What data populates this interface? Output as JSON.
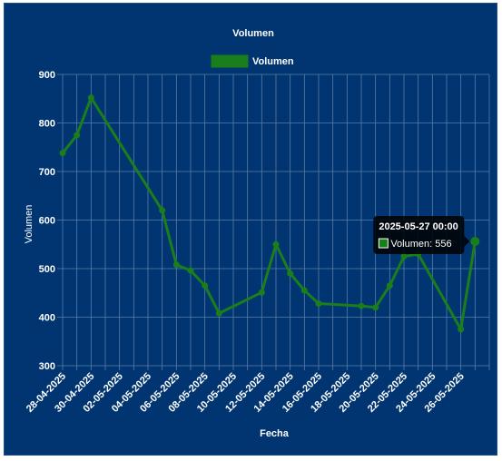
{
  "chart_data": {
    "type": "line",
    "title": "Volumen",
    "xlabel": "Fecha",
    "ylabel": "Volumen",
    "ylim": [
      300,
      900
    ],
    "y_ticks": [
      300,
      400,
      500,
      600,
      700,
      800,
      900
    ],
    "x_tick_labels": [
      "28-04-2025",
      "30-04-2025",
      "02-05-2025",
      "04-05-2025",
      "06-05-2025",
      "08-05-2025",
      "10-05-2025",
      "12-05-2025",
      "14-05-2025",
      "16-05-2025",
      "18-05-2025",
      "20-05-2025",
      "22-05-2025",
      "24-05-2025",
      "26-05-2025"
    ],
    "x_range": [
      "2025-04-28",
      "2025-05-28"
    ],
    "grid": true,
    "legend_position": "top",
    "series": [
      {
        "name": "Volumen",
        "color": "#1a7f1a",
        "points": [
          {
            "x": "2025-04-28",
            "y": 738
          },
          {
            "x": "2025-04-29",
            "y": 775
          },
          {
            "x": "2025-04-30",
            "y": 852
          },
          {
            "x": "2025-05-05",
            "y": 620
          },
          {
            "x": "2025-05-06",
            "y": 508
          },
          {
            "x": "2025-05-07",
            "y": 496
          },
          {
            "x": "2025-05-08",
            "y": 465
          },
          {
            "x": "2025-05-09",
            "y": 408
          },
          {
            "x": "2025-05-12",
            "y": 451
          },
          {
            "x": "2025-05-13",
            "y": 550
          },
          {
            "x": "2025-05-14",
            "y": 490
          },
          {
            "x": "2025-05-15",
            "y": 455
          },
          {
            "x": "2025-05-16",
            "y": 428
          },
          {
            "x": "2025-05-19",
            "y": 423
          },
          {
            "x": "2025-05-20",
            "y": 420
          },
          {
            "x": "2025-05-21",
            "y": 465
          },
          {
            "x": "2025-05-22",
            "y": 525
          },
          {
            "x": "2025-05-23",
            "y": 530
          },
          {
            "x": "2025-05-26",
            "y": 375
          },
          {
            "x": "2025-05-27",
            "y": 556
          }
        ]
      }
    ],
    "tooltip": {
      "title": "2025-05-27 00:00",
      "label": "Volumen: 556",
      "point_date": "2025-05-27"
    }
  },
  "colors": {
    "background": "#013571",
    "grid": "#5a7ca6",
    "text": "#ffffff",
    "series": "#1a7f1a",
    "tooltip_bg": "#000000"
  }
}
